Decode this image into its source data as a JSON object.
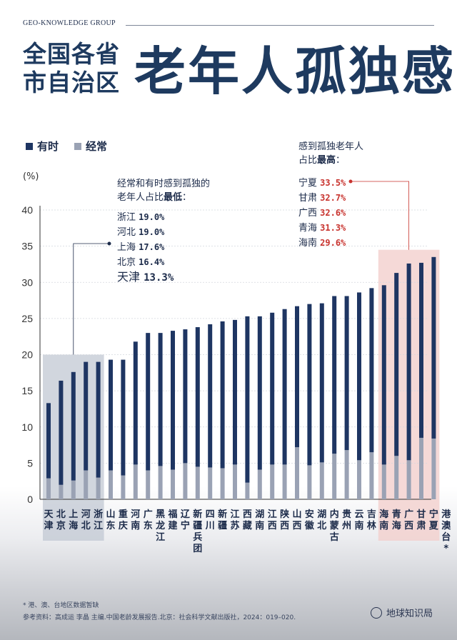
{
  "header": {
    "brand": "GEO-KNOWLEDGE GROUP",
    "title_small": "全国各省市自治区",
    "title_big": "老年人孤独感"
  },
  "legend": {
    "sometimes": "有时",
    "often": "经常"
  },
  "colors": {
    "sometimes": "#1e3562",
    "often": "#9aa2b4",
    "low_box": "#c2c8d3",
    "high_box": "#f3d0cd",
    "accent_red": "#c8332e"
  },
  "annotations": {
    "low": {
      "line1": "经常和有时感到孤独的",
      "line2_prefix": "老年人占比",
      "line2_em": "最低",
      "line2_suffix": "：",
      "items": [
        {
          "name": "浙江",
          "value": "19.0%"
        },
        {
          "name": "河北",
          "value": "19.0%"
        },
        {
          "name": "上海",
          "value": "17.6%"
        },
        {
          "name": "北京",
          "value": "16.4%"
        },
        {
          "name": "天津",
          "value": "13.3%"
        }
      ]
    },
    "high": {
      "line1": "感到孤独老年人",
      "line2_prefix": "占比",
      "line2_em": "最高",
      "line2_suffix": "：",
      "items": [
        {
          "name": "宁夏",
          "value": "33.5%"
        },
        {
          "name": "甘肃",
          "value": "32.7%"
        },
        {
          "name": "广西",
          "value": "32.6%"
        },
        {
          "name": "青海",
          "value": "31.3%"
        },
        {
          "name": "海南",
          "value": "29.6%"
        }
      ]
    }
  },
  "footer": {
    "note": "* 港、澳、台地区数据暂缺",
    "reference": "参考资料：高成运 李晶 主编.中国老龄发展报告.北京：社会科学文献出版社，2024：019–020.",
    "logo": "地球知识局"
  },
  "chart_data": {
    "type": "bar",
    "stacked": true,
    "ylabel": "(%)",
    "ylim": [
      0,
      40
    ],
    "yticks": [
      0,
      5,
      10,
      15,
      20,
      25,
      30,
      35,
      40
    ],
    "categories": [
      "天津",
      "北京",
      "上海",
      "河北",
      "浙江",
      "山东",
      "重庆",
      "河南",
      "广东",
      "黑龙江",
      "福建",
      "辽宁",
      "新疆兵团",
      "四川",
      "新疆",
      "江苏",
      "西藏",
      "湖南",
      "江西",
      "陕西",
      "山西",
      "安徽",
      "湖北",
      "内蒙古",
      "贵州",
      "云南",
      "吉林",
      "海南",
      "青海",
      "广西",
      "甘肃",
      "宁夏",
      "港澳台*"
    ],
    "series": [
      {
        "name": "有时",
        "values": [
          10.4,
          14.4,
          15.0,
          15.0,
          16.0,
          15.3,
          16.0,
          17.0,
          19.0,
          18.4,
          19.2,
          18.5,
          19.3,
          19.8,
          20.3,
          20.0,
          23.0,
          21.2,
          21.0,
          21.5,
          19.5,
          22.3,
          22.0,
          21.8,
          21.3,
          23.2,
          22.7,
          24.8,
          25.3,
          27.2,
          24.2,
          25.1,
          0
        ]
      },
      {
        "name": "经常",
        "values": [
          2.9,
          2.0,
          2.6,
          4.0,
          3.0,
          4.0,
          3.3,
          4.8,
          4.0,
          4.6,
          4.1,
          5.0,
          4.5,
          4.4,
          4.3,
          4.8,
          2.3,
          4.1,
          4.8,
          4.8,
          7.2,
          4.7,
          5.1,
          6.3,
          6.8,
          5.4,
          6.5,
          4.8,
          6.0,
          5.4,
          8.5,
          8.4,
          0
        ]
      }
    ],
    "highlight_low": [
      "天津",
      "北京",
      "上海",
      "河北",
      "浙江"
    ],
    "highlight_high": [
      "海南",
      "青海",
      "广西",
      "甘肃",
      "宁夏"
    ]
  }
}
